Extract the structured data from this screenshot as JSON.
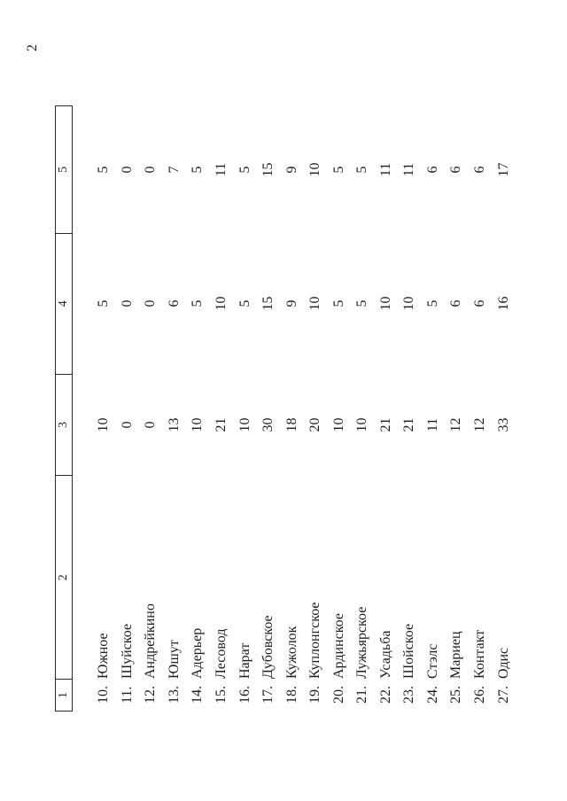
{
  "page": {
    "number": "2"
  },
  "colors": {
    "background": "#ffffff",
    "text": "#1c1c1c",
    "line": "#2b2b2b"
  },
  "table": {
    "headers": [
      "1",
      "2",
      "3",
      "4",
      "5"
    ],
    "rows": [
      {
        "num": "10.",
        "name": "Южное",
        "c3": "10",
        "c4": "5",
        "c5": "5"
      },
      {
        "num": "11.",
        "name": "Шуйское",
        "c3": "0",
        "c4": "0",
        "c5": "0"
      },
      {
        "num": "12.",
        "name": "Андрейкино",
        "c3": "0",
        "c4": "0",
        "c5": "0"
      },
      {
        "num": "13.",
        "name": "Юшут",
        "c3": "13",
        "c4": "6",
        "c5": "7"
      },
      {
        "num": "14.",
        "name": "Адерьер",
        "c3": "10",
        "c4": "5",
        "c5": "5"
      },
      {
        "num": "15.",
        "name": "Лесовод",
        "c3": "21",
        "c4": "10",
        "c5": "11"
      },
      {
        "num": "16.",
        "name": "Нарат",
        "c3": "10",
        "c4": "5",
        "c5": "5"
      },
      {
        "num": "17.",
        "name": "Дубовское",
        "c3": "30",
        "c4": "15",
        "c5": "15"
      },
      {
        "num": "18.",
        "name": "Кужолок",
        "c3": "18",
        "c4": "9",
        "c5": "9"
      },
      {
        "num": "19.",
        "name": "Куплонгское",
        "c3": "20",
        "c4": "10",
        "c5": "10"
      },
      {
        "num": "20.",
        "name": "Ардинское",
        "c3": "10",
        "c4": "5",
        "c5": "5"
      },
      {
        "num": "21.",
        "name": "Лужьярское",
        "c3": "10",
        "c4": "5",
        "c5": "5"
      },
      {
        "num": "22.",
        "name": "Усадьба",
        "c3": "21",
        "c4": "10",
        "c5": "11"
      },
      {
        "num": "23.",
        "name": "Шойское",
        "c3": "21",
        "c4": "10",
        "c5": "11"
      },
      {
        "num": "24.",
        "name": "Стэлс",
        "c3": "11",
        "c4": "5",
        "c5": "6"
      },
      {
        "num": "25.",
        "name": "Мариец",
        "c3": "12",
        "c4": "6",
        "c5": "6"
      },
      {
        "num": "26.",
        "name": "Контакт",
        "c3": "12",
        "c4": "6",
        "c5": "6"
      },
      {
        "num": "27.",
        "name": "Одис",
        "c3": "33",
        "c4": "16",
        "c5": "17"
      }
    ]
  }
}
